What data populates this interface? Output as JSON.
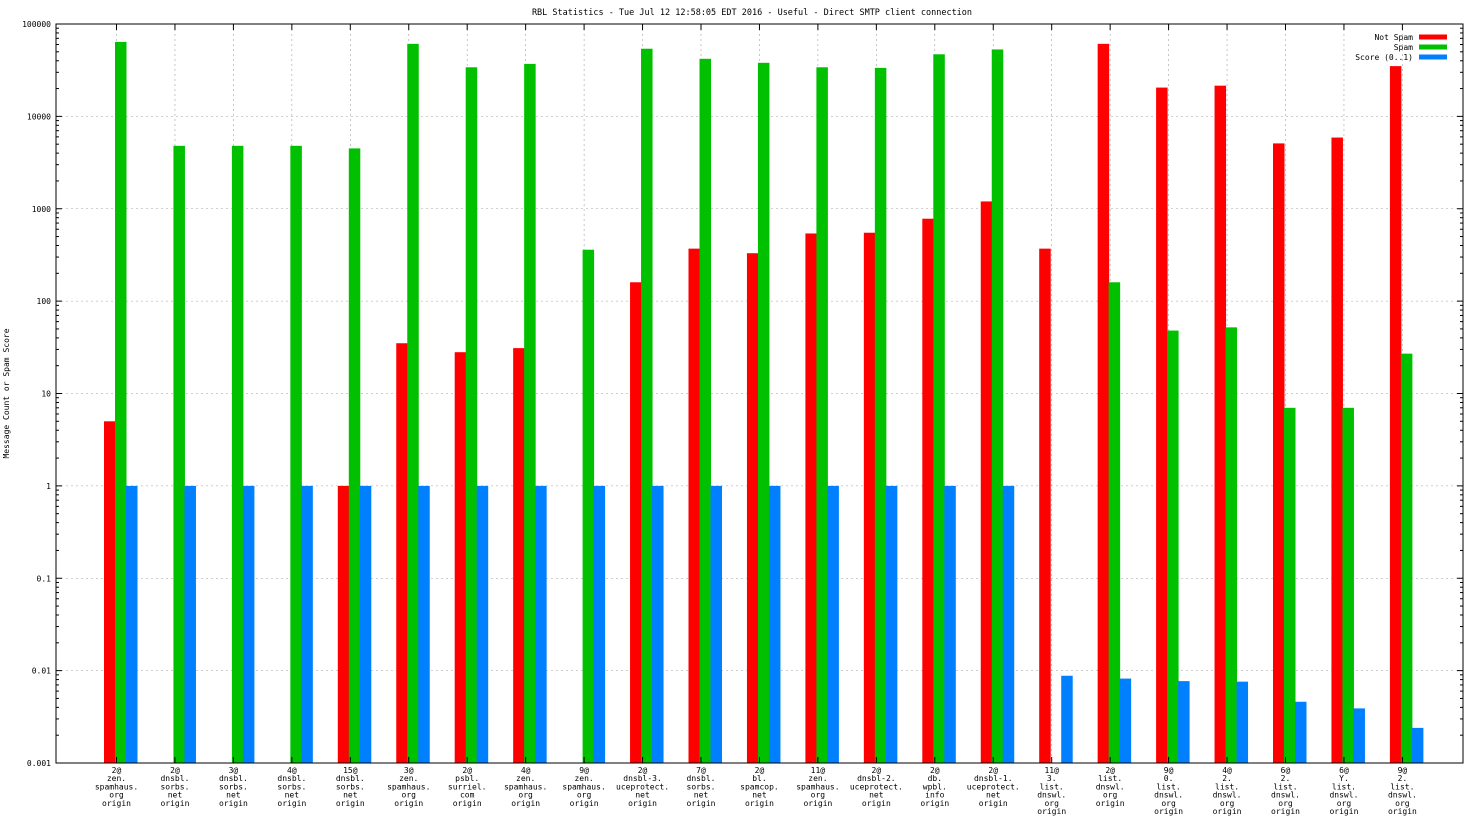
{
  "chart_data": {
    "type": "bar",
    "title": "RBL Statistics - Tue Jul 12 12:58:05 EDT 2016 - Useful - Direct SMTP client connection",
    "ylabel": "Message Count or Spam Score",
    "xlabel": "",
    "yscale": "log",
    "ylim": [
      0.001,
      100000
    ],
    "yticks": [
      "0.001",
      "0.01",
      "0.1",
      "1",
      "10",
      "100",
      "1000",
      "10000",
      "100000"
    ],
    "grid": true,
    "legend_position": "top-right",
    "categories": [
      [
        "2@",
        "zen.",
        "spamhaus.",
        "org",
        "origin"
      ],
      [
        "2@",
        "dnsbl.",
        "sorbs.",
        "net",
        "origin"
      ],
      [
        "3@",
        "dnsbl.",
        "sorbs.",
        "net",
        "origin"
      ],
      [
        "4@",
        "dnsbl.",
        "sorbs.",
        "net",
        "origin"
      ],
      [
        "15@",
        "dnsbl.",
        "sorbs.",
        "net",
        "origin"
      ],
      [
        "3@",
        "zen.",
        "spamhaus.",
        "org",
        "origin"
      ],
      [
        "2@",
        "psbl.",
        "surriel.",
        "com",
        "origin"
      ],
      [
        "4@",
        "zen.",
        "spamhaus.",
        "org",
        "origin"
      ],
      [
        "9@",
        "zen.",
        "spamhaus.",
        "org",
        "origin"
      ],
      [
        "2@",
        "dnsbl-3.",
        "uceprotect.",
        "net",
        "origin"
      ],
      [
        "7@",
        "dnsbl.",
        "sorbs.",
        "net",
        "origin"
      ],
      [
        "2@",
        "bl.",
        "spamcop.",
        "net",
        "origin"
      ],
      [
        "11@",
        "zen.",
        "spamhaus.",
        "org",
        "origin"
      ],
      [
        "2@",
        "dnsbl-2.",
        "uceprotect.",
        "net",
        "origin"
      ],
      [
        "2@",
        "db.",
        "wpbl.",
        "info",
        "origin"
      ],
      [
        "2@",
        "dnsbl-1.",
        "uceprotect.",
        "net",
        "origin"
      ],
      [
        "11@",
        "3.",
        "list.",
        "dnswl.",
        "org",
        "origin"
      ],
      [
        "2@",
        "list.",
        "dnswl.",
        "org",
        "origin"
      ],
      [
        "9@",
        "0.",
        "list.",
        "dnswl.",
        "org",
        "origin"
      ],
      [
        "4@",
        "2.",
        "list.",
        "dnswl.",
        "org",
        "origin"
      ],
      [
        "6@",
        "2.",
        "list.",
        "dnswl.",
        "org",
        "origin"
      ],
      [
        "6@",
        "Y.",
        "list.",
        "dnswl.",
        "org",
        "origin"
      ],
      [
        "9@",
        "2.",
        "list.",
        "dnswl.",
        "org",
        "origin"
      ]
    ],
    "series": [
      {
        "name": "Not Spam",
        "color": "#ff0000",
        "values": [
          5,
          null,
          null,
          null,
          1,
          35,
          28,
          31,
          null,
          160,
          370,
          330,
          540,
          550,
          780,
          1200,
          370,
          61000,
          20500,
          21500,
          5100,
          5900,
          35000
        ]
      },
      {
        "name": "Spam",
        "color": "#00c000",
        "values": [
          64000,
          4800,
          4800,
          4800,
          4500,
          61000,
          34000,
          37000,
          360,
          54000,
          42000,
          38000,
          34000,
          33500,
          47000,
          53000,
          null,
          160,
          48,
          52,
          7,
          7,
          27
        ]
      },
      {
        "name": "Score (0..1)",
        "color": "#0080ff",
        "values": [
          1,
          1,
          1,
          1,
          1,
          1,
          1,
          1,
          1,
          1,
          1,
          1,
          1,
          1,
          1,
          1,
          0.0088,
          0.0082,
          0.0077,
          0.0076,
          0.0046,
          0.0039,
          0.0024
        ]
      }
    ]
  }
}
